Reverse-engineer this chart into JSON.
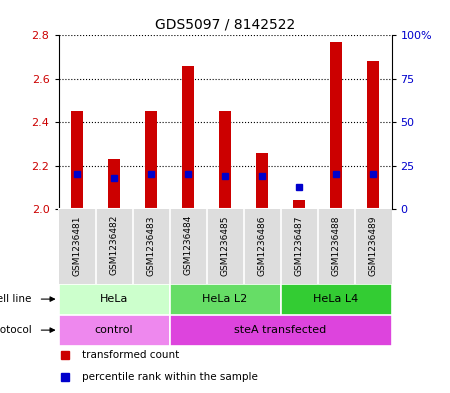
{
  "title": "GDS5097 / 8142522",
  "samples": [
    "GSM1236481",
    "GSM1236482",
    "GSM1236483",
    "GSM1236484",
    "GSM1236485",
    "GSM1236486",
    "GSM1236487",
    "GSM1236488",
    "GSM1236489"
  ],
  "transformed_counts": [
    2.45,
    2.23,
    2.45,
    2.66,
    2.45,
    2.26,
    2.04,
    2.77,
    2.68
  ],
  "percentile_ranks": [
    20,
    18,
    20,
    20,
    19,
    19,
    13,
    20,
    20
  ],
  "ylim_left": [
    2.0,
    2.8
  ],
  "ylim_right": [
    0,
    100
  ],
  "yticks_left": [
    2.0,
    2.2,
    2.4,
    2.6,
    2.8
  ],
  "yticks_right": [
    0,
    25,
    50,
    75,
    100
  ],
  "ytick_labels_right": [
    "0",
    "25",
    "50",
    "75",
    "100%"
  ],
  "bar_color": "#cc0000",
  "dot_color": "#0000cc",
  "bar_bottom": 2.0,
  "cell_line_groups": [
    {
      "label": "HeLa",
      "start": 0,
      "end": 3,
      "color": "#ccffcc"
    },
    {
      "label": "HeLa L2",
      "start": 3,
      "end": 6,
      "color": "#66dd66"
    },
    {
      "label": "HeLa L4",
      "start": 6,
      "end": 9,
      "color": "#33cc33"
    }
  ],
  "protocol_groups": [
    {
      "label": "control",
      "start": 0,
      "end": 3,
      "color": "#ee88ee"
    },
    {
      "label": "steA transfected",
      "start": 3,
      "end": 9,
      "color": "#dd44dd"
    }
  ],
  "legend_items": [
    {
      "color": "#cc0000",
      "label": "transformed count"
    },
    {
      "color": "#0000cc",
      "label": "percentile rank within the sample"
    }
  ],
  "left_tick_color": "#cc0000",
  "right_tick_color": "#0000cc",
  "bg_color": "#ffffff",
  "plot_bg_color": "#ffffff",
  "xticklabel_bg": "#dddddd",
  "spine_color": "#000000"
}
